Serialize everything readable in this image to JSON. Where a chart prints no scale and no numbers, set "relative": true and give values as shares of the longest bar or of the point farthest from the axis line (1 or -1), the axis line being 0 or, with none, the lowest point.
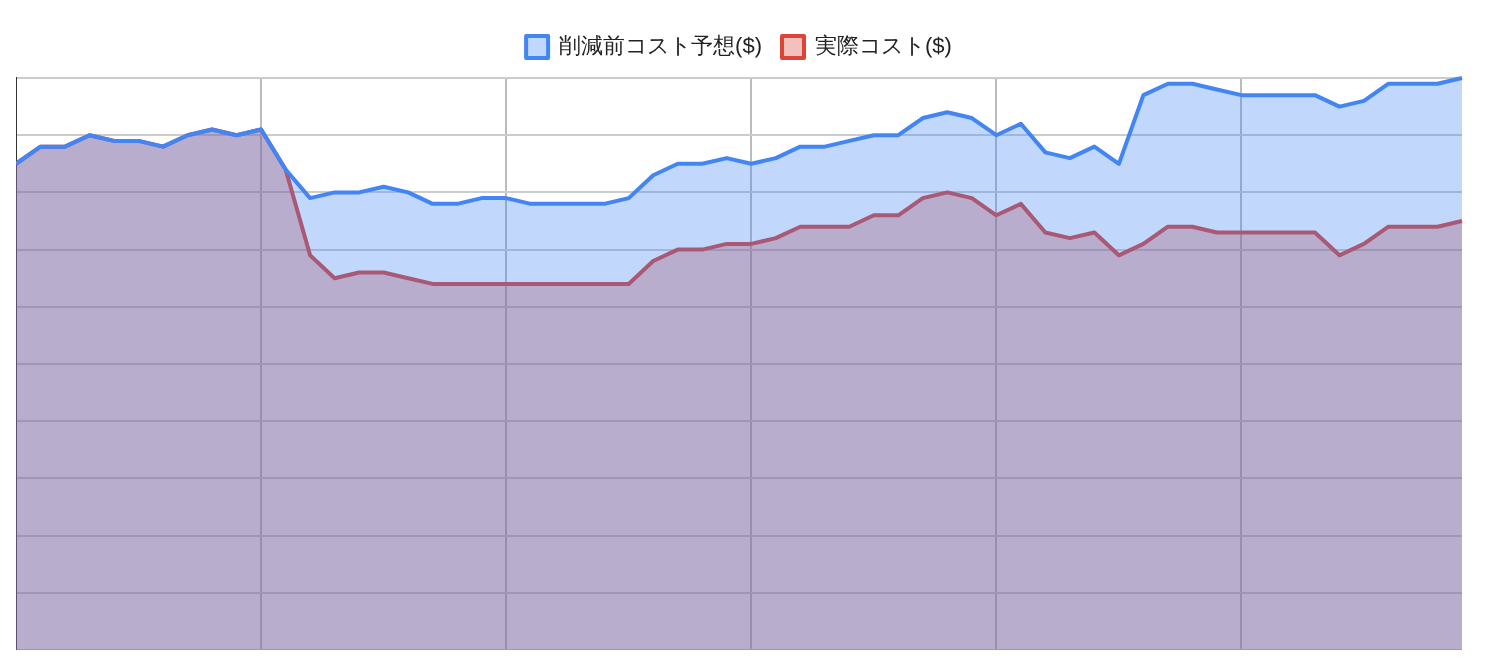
{
  "chart_data": {
    "type": "area",
    "relative": true,
    "grid": true,
    "legend": "top",
    "marker": "none",
    "categories": [
      null,
      null,
      null,
      null,
      null,
      null,
      null,
      null,
      null,
      null,
      null,
      null,
      null,
      null,
      null,
      null,
      null,
      null,
      null,
      null,
      null,
      null,
      null,
      null,
      null,
      null,
      null,
      null,
      null,
      null,
      null,
      null,
      null,
      null,
      null,
      null,
      null,
      null,
      null,
      null,
      null,
      null,
      null,
      null,
      null,
      null,
      null,
      null,
      null,
      null,
      null,
      null,
      null,
      null,
      null,
      null,
      null,
      null,
      null,
      null
    ],
    "series": [
      {
        "name": "削減前コスト予想($)",
        "color": "#4285f4",
        "values": [
          0.85,
          0.88,
          0.88,
          0.9,
          0.89,
          0.89,
          0.88,
          0.9,
          0.91,
          0.9,
          0.91,
          0.84,
          0.79,
          0.8,
          0.8,
          0.81,
          0.8,
          0.78,
          0.78,
          0.79,
          0.79,
          0.78,
          0.78,
          0.78,
          0.78,
          0.79,
          0.83,
          0.85,
          0.85,
          0.86,
          0.85,
          0.86,
          0.88,
          0.88,
          0.89,
          0.9,
          0.9,
          0.93,
          0.94,
          0.93,
          0.9,
          0.92,
          0.87,
          0.86,
          0.88,
          0.85,
          0.97,
          0.99,
          0.99,
          0.98,
          0.97,
          0.97,
          0.97,
          0.97,
          0.95,
          0.96,
          0.99,
          0.99,
          0.99,
          1
        ]
      },
      {
        "name": "実際コスト($)",
        "color": "#db4437",
        "values": [
          0.85,
          0.88,
          0.88,
          0.9,
          0.89,
          0.89,
          0.88,
          0.9,
          0.91,
          0.9,
          0.91,
          0.84,
          0.69,
          0.65,
          0.66,
          0.66,
          0.65,
          0.64,
          0.64,
          0.64,
          0.64,
          0.64,
          0.64,
          0.64,
          0.64,
          0.64,
          0.68,
          0.7,
          0.7,
          0.71,
          0.71,
          0.72,
          0.74,
          0.74,
          0.74,
          0.76,
          0.76,
          0.79,
          0.8,
          0.79,
          0.76,
          0.78,
          0.73,
          0.72,
          0.73,
          0.69,
          0.71,
          0.74,
          0.74,
          0.73,
          0.73,
          0.73,
          0.73,
          0.73,
          0.69,
          0.71,
          0.74,
          0.74,
          0.74,
          0.75
        ]
      }
    ]
  }
}
